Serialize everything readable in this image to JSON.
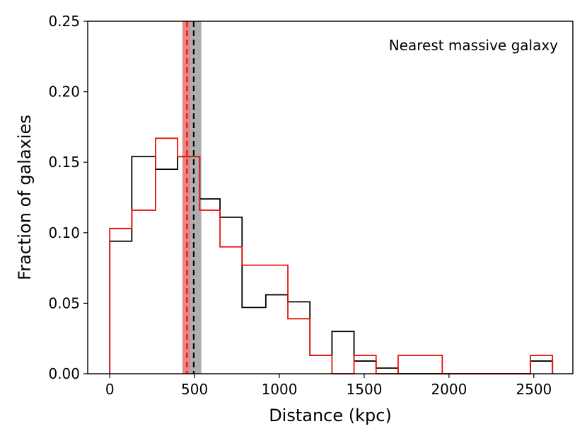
{
  "chart_data": {
    "type": "step-histogram",
    "annotation": "Nearest massive galaxy",
    "xlabel": "Distance (kpc)",
    "ylabel": "Fraction of galaxies",
    "xlim": [
      -130,
      2730
    ],
    "ylim": [
      0.0,
      0.25
    ],
    "xticks": [
      0,
      500,
      1000,
      1500,
      2000,
      2500
    ],
    "xtick_labels": [
      "0",
      "500",
      "1000",
      "1500",
      "2000",
      "2500"
    ],
    "yticks": [
      0.0,
      0.05,
      0.1,
      0.15,
      0.2,
      0.25
    ],
    "ytick_labels": [
      "0.00",
      "0.05",
      "0.10",
      "0.15",
      "0.20",
      "0.25"
    ],
    "series": [
      {
        "name": "black histogram",
        "color": "#000000",
        "bin_edges": [
          0,
          130,
          270,
          400,
          530,
          650,
          780,
          920,
          1050,
          1180,
          1310,
          1440,
          1570,
          1700,
          2480,
          2610
        ],
        "values": [
          0.094,
          0.154,
          0.145,
          0.154,
          0.124,
          0.111,
          0.047,
          0.056,
          0.051,
          0.013,
          0.03,
          0.009,
          0.004,
          0.0,
          0.009
        ]
      },
      {
        "name": "red histogram",
        "color": "#e8120c",
        "bin_edges": [
          0,
          130,
          270,
          400,
          530,
          650,
          780,
          1050,
          1180,
          1310,
          1440,
          1570,
          1700,
          1960,
          2480,
          2610
        ],
        "values": [
          0.103,
          0.116,
          0.167,
          0.154,
          0.116,
          0.09,
          0.077,
          0.039,
          0.013,
          0.0,
          0.013,
          0.0,
          0.013,
          0.0,
          0.013
        ]
      }
    ],
    "vertical_lines": [
      {
        "name": "black median",
        "x": 495,
        "band": [
          430,
          540
        ],
        "color": "#000000",
        "band_color": "#aaaaaa"
      },
      {
        "name": "red median",
        "x": 455,
        "band": [
          428,
          475
        ],
        "color": "#e8120c",
        "band_color": "#f08080"
      }
    ]
  }
}
